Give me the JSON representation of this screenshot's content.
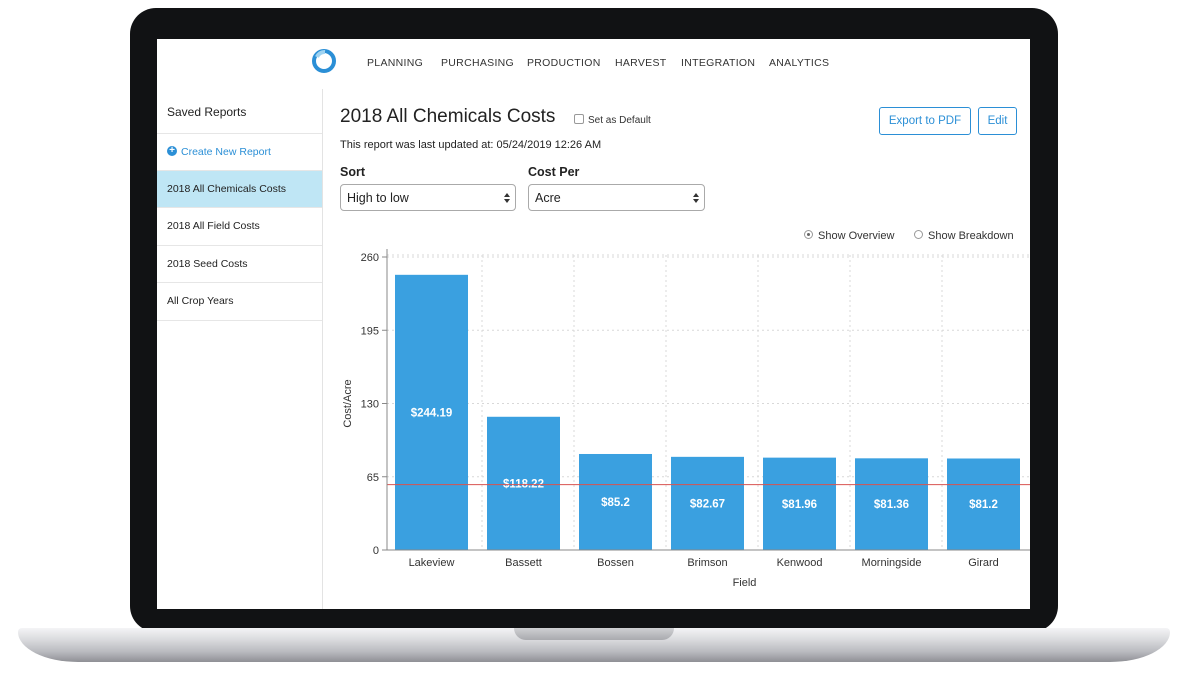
{
  "nav": {
    "items": [
      "PLANNING",
      "PURCHASING",
      "PRODUCTION",
      "HARVEST",
      "INTEGRATION",
      "ANALYTICS"
    ],
    "logo_icon": "ring-logo-icon"
  },
  "sidebar": {
    "title": "Saved Reports",
    "create_label": "Create New Report",
    "items": [
      {
        "label": "2018 All Chemicals Costs",
        "active": true
      },
      {
        "label": "2018 All Field Costs",
        "active": false
      },
      {
        "label": "2018 Seed Costs",
        "active": false
      },
      {
        "label": "All Crop Years",
        "active": false
      }
    ]
  },
  "report": {
    "title": "2018 All Chemicals Costs",
    "set_default_label": "Set as Default",
    "updated_text": "This report was last updated at: 05/24/2019 12:26 AM",
    "export_label": "Export to PDF",
    "edit_label": "Edit"
  },
  "controls": {
    "sort_label": "Sort",
    "sort_value": "High to low",
    "cost_per_label": "Cost Per",
    "cost_per_value": "Acre",
    "show_overview_label": "Show Overview",
    "show_breakdown_label": "Show Breakdown",
    "selected_view": "overview"
  },
  "colors": {
    "accent": "#2b8fd6",
    "bar": "#3aa0e0",
    "reference_line": "#d9534f",
    "active_row": "#bfe6f5"
  },
  "chart_data": {
    "type": "bar",
    "categories": [
      "Lakeview",
      "Bassett",
      "Bossen",
      "Brimson",
      "Kenwood",
      "Morningside",
      "Girard"
    ],
    "values": [
      244.19,
      118.22,
      85.2,
      82.67,
      81.96,
      81.36,
      81.2
    ],
    "value_labels": [
      "$244.19",
      "$118.22",
      "$85.2",
      "$82.67",
      "$81.96",
      "$81.36",
      "$81.2"
    ],
    "xlabel": "Field",
    "ylabel": "Cost/Acre",
    "ylim": [
      0,
      260
    ],
    "yticks": [
      0,
      65,
      130,
      195,
      260
    ],
    "reference_line": 58,
    "grid": true
  }
}
